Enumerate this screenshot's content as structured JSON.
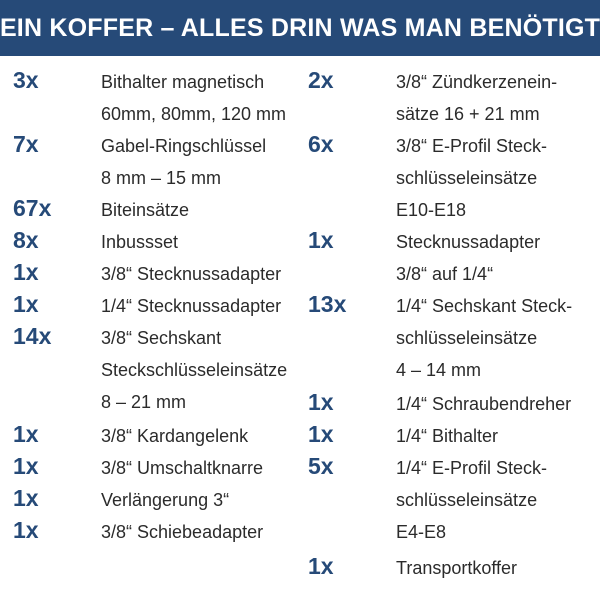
{
  "header": {
    "title": "EIN KOFFER – ALLES DRIN WAS MAN BENÖTIGT",
    "colors": {
      "background": "#264a78",
      "text": "#ffffff"
    }
  },
  "colors": {
    "quantity": "#264a78",
    "description": "#2b2b2b"
  },
  "left_items": [
    {
      "qty": "3x",
      "desc": "Bithalter magnetisch\n60mm, 80mm, 120 mm"
    },
    {
      "qty": "7x",
      "desc": "Gabel-Ringschlüssel\n8 mm – 15 mm"
    },
    {
      "qty": "67x",
      "desc": "Biteinsätze"
    },
    {
      "qty": "8x",
      "desc": "Inbussset"
    },
    {
      "qty": "1x",
      "desc": "3/8“ Stecknussadapter"
    },
    {
      "qty": "1x",
      "desc": "1/4“ Stecknussadapter"
    },
    {
      "qty": "14x",
      "desc": "3/8“ Sechskant\nSteckschlüsseleinsätze\n8 – 21 mm"
    },
    {
      "qty": "1x",
      "desc": "3/8“ Kardangelenk"
    },
    {
      "qty": "1x",
      "desc": "3/8“ Umschaltknarre"
    },
    {
      "qty": "1x",
      "desc": "Verlängerung 3“"
    },
    {
      "qty": "1x",
      "desc": "3/8“ Schiebeadapter"
    }
  ],
  "right_items": [
    {
      "qty": "2x",
      "desc": "3/8“ Zündkerzenein-\nsätze 16 + 21 mm"
    },
    {
      "qty": "6x",
      "desc": "3/8“ E-Profil Steck-\nschlüsseleinsätze\nE10-E18"
    },
    {
      "qty": "1x",
      "desc": "Stecknussadapter\n3/8“ auf 1/4“"
    },
    {
      "qty": "13x",
      "desc": "1/4“ Sechskant Steck-\nschlüsseleinsätze\n4 – 14 mm"
    },
    {
      "qty": "1x",
      "desc": "1/4“ Schraubendreher"
    },
    {
      "qty": "1x",
      "desc": "1/4“ Bithalter"
    },
    {
      "qty": "5x",
      "desc": "1/4“ E-Profil Steck-\nschlüsseleinsätze\nE4-E8"
    },
    {
      "qty": "1x",
      "desc": "Transportkoffer"
    }
  ]
}
